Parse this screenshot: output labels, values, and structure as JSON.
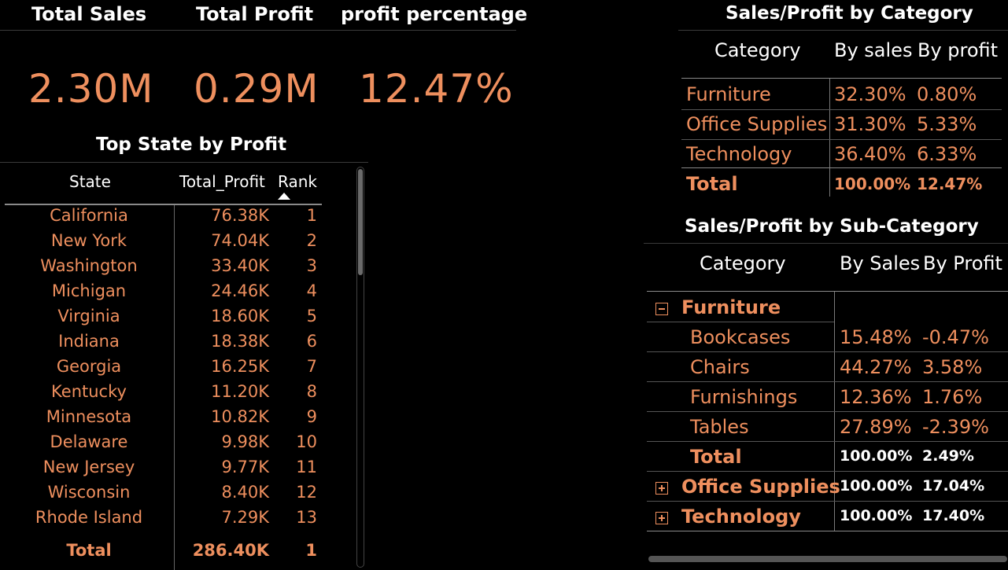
{
  "kpis": [
    {
      "title": "Total Sales",
      "value": "2.30M"
    },
    {
      "title": "Total Profit",
      "value": "0.29M"
    },
    {
      "title": "profit percentage",
      "value": "12.47%"
    }
  ],
  "top_states": {
    "title": "Top State by Profit",
    "headers": {
      "state": "State",
      "profit": "Total_Profit",
      "rank": "Rank"
    },
    "rows": [
      {
        "state": "California",
        "profit": "76.38K",
        "rank": "1"
      },
      {
        "state": "New York",
        "profit": "74.04K",
        "rank": "2"
      },
      {
        "state": "Washington",
        "profit": "33.40K",
        "rank": "3"
      },
      {
        "state": "Michigan",
        "profit": "24.46K",
        "rank": "4"
      },
      {
        "state": "Virginia",
        "profit": "18.60K",
        "rank": "5"
      },
      {
        "state": "Indiana",
        "profit": "18.38K",
        "rank": "6"
      },
      {
        "state": "Georgia",
        "profit": "16.25K",
        "rank": "7"
      },
      {
        "state": "Kentucky",
        "profit": "11.20K",
        "rank": "8"
      },
      {
        "state": "Minnesota",
        "profit": "10.82K",
        "rank": "9"
      },
      {
        "state": "Delaware",
        "profit": "9.98K",
        "rank": "10"
      },
      {
        "state": "New Jersey",
        "profit": "9.77K",
        "rank": "11"
      },
      {
        "state": "Wisconsin",
        "profit": "8.40K",
        "rank": "12"
      },
      {
        "state": "Rhode Island",
        "profit": "7.29K",
        "rank": "13"
      }
    ],
    "total": {
      "state": "Total",
      "profit": "286.40K",
      "rank": "1"
    }
  },
  "category": {
    "title": "Sales/Profit by Category",
    "headers": {
      "category": "Category",
      "sales": "By sales",
      "profit": "By profit"
    },
    "rows": [
      {
        "category": "Furniture",
        "sales": "32.30%",
        "profit": "0.80%"
      },
      {
        "category": "Office Supplies",
        "sales": "31.30%",
        "profit": "5.33%"
      },
      {
        "category": "Technology",
        "sales": "36.40%",
        "profit": "6.33%"
      }
    ],
    "total": {
      "category": "Total",
      "sales": "100.00%",
      "profit": "12.47%"
    }
  },
  "subcategory": {
    "title": "Sales/Profit by Sub-Category",
    "headers": {
      "category": "Category",
      "sales": "By Sales",
      "profit": "By Profit"
    },
    "furniture": {
      "label": "Furniture",
      "rows": [
        {
          "name": "Bookcases",
          "sales": "15.48%",
          "profit": "-0.47%"
        },
        {
          "name": "Chairs",
          "sales": "44.27%",
          "profit": "3.58%"
        },
        {
          "name": "Furnishings",
          "sales": "12.36%",
          "profit": "1.76%"
        },
        {
          "name": "Tables",
          "sales": "27.89%",
          "profit": "-2.39%"
        }
      ],
      "total": {
        "name": "Total",
        "sales": "100.00%",
        "profit": "2.49%"
      }
    },
    "office_supplies": {
      "label": "Office Supplies",
      "sales": "100.00%",
      "profit": "17.04%"
    },
    "technology": {
      "label": "Technology",
      "sales": "100.00%",
      "profit": "17.40%"
    }
  },
  "icons": {
    "collapse": "minus-box-icon",
    "expand": "plus-box-icon",
    "sort": "sort-ascending-icon"
  },
  "colors": {
    "accent": "#EE8F5E",
    "background": "#000000"
  }
}
